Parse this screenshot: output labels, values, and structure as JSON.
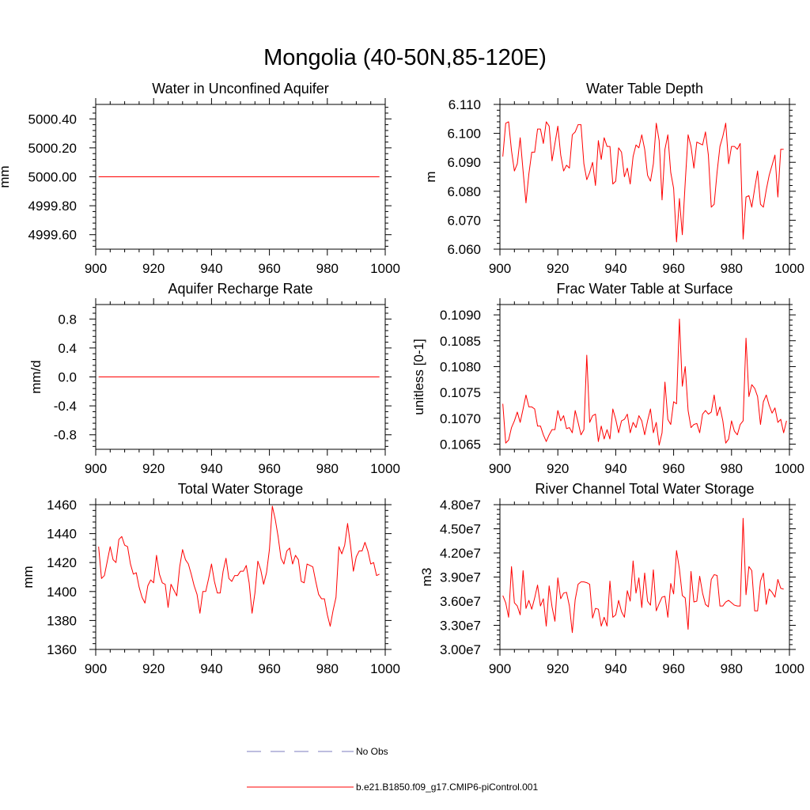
{
  "title": "Mongolia (40-50N,85-120E)",
  "colors": {
    "model": "#ff0000",
    "obs": "#7b7bbf",
    "axis": "#000000"
  },
  "legend": [
    {
      "label": "No Obs",
      "style": "dashed",
      "color": "#7b7bbf"
    },
    {
      "label": "b.e21.B1850.f09_g17.CMIP6-piControl.001",
      "style": "solid",
      "color": "#ff0000"
    }
  ],
  "chart_data": [
    {
      "type": "line",
      "title": "Water in Unconfined Aquifer",
      "xlabel": "",
      "ylabel": "mm",
      "xlim": [
        900,
        1000
      ],
      "ylim": [
        4999.5,
        5000.5
      ],
      "xticks": [
        900,
        920,
        940,
        960,
        980,
        1000
      ],
      "yticks": [
        4999.6,
        4999.8,
        5000.0,
        5000.2,
        5000.4
      ],
      "ytick_labels": [
        "4999.60",
        "4999.80",
        "5000.00",
        "5000.20",
        "5000.40"
      ],
      "series": [
        {
          "name": "b.e21.B1850.f09_g17.CMIP6-piControl.001",
          "x_start": 901,
          "values": [
            5000,
            5000,
            5000,
            5000,
            5000,
            5000,
            5000,
            5000,
            5000,
            5000,
            5000,
            5000,
            5000,
            5000,
            5000,
            5000,
            5000,
            5000,
            5000,
            5000,
            5000,
            5000,
            5000,
            5000,
            5000,
            5000,
            5000,
            5000,
            5000,
            5000,
            5000,
            5000,
            5000,
            5000,
            5000,
            5000,
            5000,
            5000,
            5000,
            5000,
            5000,
            5000,
            5000,
            5000,
            5000,
            5000,
            5000,
            5000,
            5000,
            5000,
            5000,
            5000,
            5000,
            5000,
            5000,
            5000,
            5000,
            5000,
            5000,
            5000,
            5000,
            5000,
            5000,
            5000,
            5000,
            5000,
            5000,
            5000,
            5000,
            5000,
            5000,
            5000,
            5000,
            5000,
            5000,
            5000,
            5000,
            5000,
            5000,
            5000,
            5000,
            5000,
            5000,
            5000,
            5000,
            5000,
            5000,
            5000,
            5000,
            5000,
            5000,
            5000,
            5000,
            5000,
            5000,
            5000,
            5000,
            5000
          ]
        }
      ]
    },
    {
      "type": "line",
      "title": "Water Table Depth",
      "xlabel": "",
      "ylabel": "m",
      "xlim": [
        900,
        1000
      ],
      "ylim": [
        6.06,
        6.11
      ],
      "xticks": [
        900,
        920,
        940,
        960,
        980,
        1000
      ],
      "yticks": [
        6.06,
        6.07,
        6.08,
        6.09,
        6.1,
        6.11
      ],
      "ytick_labels": [
        "6.060",
        "6.070",
        "6.080",
        "6.090",
        "6.100",
        "6.110"
      ],
      "series": [
        {
          "name": "b.e21.B1850.f09_g17.CMIP6-piControl.001",
          "x_start": 901,
          "values": [
            6.092,
            6.1035,
            6.104,
            6.094,
            6.087,
            6.0895,
            6.0985,
            6.087,
            6.076,
            6.086,
            6.0935,
            6.0935,
            6.1015,
            6.1015,
            6.0965,
            6.104,
            6.1025,
            6.0905,
            6.0965,
            6.1025,
            6.0925,
            6.087,
            6.089,
            6.088,
            6.0995,
            6.1005,
            6.103,
            6.103,
            6.0895,
            6.084,
            6.0865,
            6.09,
            6.082,
            6.0975,
            6.091,
            6.0985,
            6.0955,
            6.0955,
            6.0825,
            6.0835,
            6.095,
            6.0935,
            6.085,
            6.088,
            6.0825,
            6.092,
            6.096,
            6.095,
            6.0995,
            6.0945,
            6.0855,
            6.0835,
            6.0895,
            6.1035,
            6.0975,
            6.077,
            6.0945,
            6.0995,
            6.0865,
            6.081,
            6.0625,
            6.0775,
            6.065,
            6.083,
            6.0995,
            6.0955,
            6.088,
            6.097,
            6.0965,
            6.096,
            6.1005,
            6.0925,
            6.0745,
            6.0755,
            6.0865,
            6.0955,
            6.099,
            6.1035,
            6.0895,
            6.0955,
            6.0955,
            6.0945,
            6.0965,
            6.0635,
            6.078,
            6.0785,
            6.0745,
            6.081,
            6.087,
            6.0755,
            6.0745,
            6.0805,
            6.0855,
            6.089,
            6.0925,
            6.078,
            6.0945,
            6.0945
          ]
        }
      ]
    },
    {
      "type": "line",
      "title": "Aquifer Recharge Rate",
      "xlabel": "",
      "ylabel": "mm/d",
      "xlim": [
        900,
        1000
      ],
      "ylim": [
        -1.0,
        1.0
      ],
      "xticks": [
        900,
        920,
        940,
        960,
        980,
        1000
      ],
      "yticks": [
        -0.8,
        -0.4,
        0.0,
        0.4,
        0.8
      ],
      "ytick_labels": [
        "-0.8",
        "-0.4",
        "0.0",
        "0.4",
        "0.8"
      ],
      "series": [
        {
          "name": "b.e21.B1850.f09_g17.CMIP6-piControl.001",
          "x_start": 901,
          "values": [
            0,
            0,
            0,
            0,
            0,
            0,
            0,
            0,
            0,
            0,
            0,
            0,
            0,
            0,
            0,
            0,
            0,
            0,
            0,
            0,
            0,
            0,
            0,
            0,
            0,
            0,
            0,
            0,
            0,
            0,
            0,
            0,
            0,
            0,
            0,
            0,
            0,
            0,
            0,
            0,
            0,
            0,
            0,
            0,
            0,
            0,
            0,
            0,
            0,
            0,
            0,
            0,
            0,
            0,
            0,
            0,
            0,
            0,
            0,
            0,
            0,
            0,
            0,
            0,
            0,
            0,
            0,
            0,
            0,
            0,
            0,
            0,
            0,
            0,
            0,
            0,
            0,
            0,
            0,
            0,
            0,
            0,
            0,
            0,
            0,
            0,
            0,
            0,
            0,
            0,
            0,
            0,
            0,
            0,
            0,
            0,
            0,
            0
          ]
        }
      ]
    },
    {
      "type": "line",
      "title": "Frac Water Table at Surface",
      "xlabel": "",
      "ylabel": "unitless [0-1]",
      "xlim": [
        900,
        1000
      ],
      "ylim": [
        0.1064,
        0.1092
      ],
      "xticks": [
        900,
        920,
        940,
        960,
        980,
        1000
      ],
      "yticks": [
        0.1065,
        0.107,
        0.1075,
        0.108,
        0.1085,
        0.109
      ],
      "ytick_labels": [
        "0.1065",
        "0.1070",
        "0.1075",
        "0.1080",
        "0.1085",
        "0.1090"
      ],
      "series": [
        {
          "name": "b.e21.B1850.f09_g17.CMIP6-piControl.001",
          "x_start": 901,
          "values": [
            0.10728,
            0.10652,
            0.10658,
            0.10682,
            0.10695,
            0.10712,
            0.10692,
            0.10718,
            0.10745,
            0.10722,
            0.10722,
            0.10718,
            0.10685,
            0.10685,
            0.10668,
            0.10655,
            0.10668,
            0.10678,
            0.10678,
            0.10715,
            0.10695,
            0.10705,
            0.1068,
            0.10682,
            0.10672,
            0.10715,
            0.10692,
            0.10668,
            0.10678,
            0.10822,
            0.10692,
            0.10705,
            0.10708,
            0.10655,
            0.10685,
            0.1066,
            0.10678,
            0.1066,
            0.10718,
            0.10698,
            0.10672,
            0.10695,
            0.10698,
            0.10708,
            0.10672,
            0.10692,
            0.10682,
            0.10705,
            0.10695,
            0.10668,
            0.10695,
            0.10718,
            0.10672,
            0.10692,
            0.10648,
            0.10672,
            0.1077,
            0.10698,
            0.10688,
            0.10732,
            0.10728,
            0.10892,
            0.10762,
            0.108,
            0.10715,
            0.10682,
            0.10688,
            0.1069,
            0.10672,
            0.10708,
            0.10715,
            0.10708,
            0.10712,
            0.10745,
            0.10705,
            0.10722,
            0.10695,
            0.10652,
            0.1066,
            0.10695,
            0.10675,
            0.10668,
            0.10688,
            0.10695,
            0.10855,
            0.10742,
            0.10765,
            0.10758,
            0.10742,
            0.10688,
            0.10732,
            0.10745,
            0.10725,
            0.1071,
            0.1072,
            0.10692,
            0.10698,
            0.10672,
            0.10695
          ]
        }
      ]
    },
    {
      "type": "line",
      "title": "Total Water Storage",
      "xlabel": "",
      "ylabel": "mm",
      "xlim": [
        900,
        1000
      ],
      "ylim": [
        1360,
        1460
      ],
      "xticks": [
        900,
        920,
        940,
        960,
        980,
        1000
      ],
      "yticks": [
        1360,
        1380,
        1400,
        1420,
        1440,
        1460
      ],
      "ytick_labels": [
        "1360",
        "1380",
        "1400",
        "1420",
        "1440",
        "1460"
      ],
      "series": [
        {
          "name": "b.e21.B1850.f09_g17.CMIP6-piControl.001",
          "x_start": 901,
          "values": [
            1431,
            1409,
            1411,
            1421,
            1431,
            1422,
            1420,
            1436,
            1438,
            1432,
            1431,
            1419,
            1412,
            1413,
            1403,
            1396,
            1392,
            1404,
            1408,
            1406,
            1425,
            1412,
            1406,
            1405,
            1389,
            1405,
            1401,
            1397,
            1417,
            1429,
            1422,
            1419,
            1412,
            1404,
            1398,
            1385,
            1400,
            1400,
            1409,
            1419,
            1407,
            1399,
            1399,
            1414,
            1423,
            1409,
            1407,
            1411,
            1411,
            1414,
            1414,
            1418,
            1406,
            1385,
            1399,
            1421,
            1415,
            1405,
            1413,
            1429,
            1459,
            1450,
            1438,
            1423,
            1419,
            1428,
            1430,
            1419,
            1425,
            1422,
            1407,
            1406,
            1419,
            1418,
            1417,
            1407,
            1398,
            1395,
            1395,
            1384,
            1376,
            1387,
            1396,
            1431,
            1426,
            1432,
            1447,
            1432,
            1414,
            1424,
            1428,
            1428,
            1434,
            1428,
            1419,
            1420,
            1411,
            1412
          ]
        }
      ]
    },
    {
      "type": "line",
      "title": "River Channel Total Water Storage",
      "xlabel": "",
      "ylabel": "m3",
      "xlim": [
        900,
        1000
      ],
      "ylim": [
        30000000,
        48000000
      ],
      "xticks": [
        900,
        920,
        940,
        960,
        980,
        1000
      ],
      "yticks": [
        30000000,
        33000000,
        36000000,
        39000000,
        42000000,
        45000000,
        48000000
      ],
      "ytick_labels": [
        "3.00e7",
        "3.30e7",
        "3.60e7",
        "3.90e7",
        "4.20e7",
        "4.50e7",
        "4.80e7"
      ],
      "series": [
        {
          "name": "b.e21.B1850.f09_g17.CMIP6-piControl.001",
          "x_start": 901,
          "values": [
            36700000,
            35800000,
            34000000,
            40300000,
            35800000,
            35400000,
            34300000,
            39800000,
            35100000,
            36100000,
            35000000,
            36400000,
            38000000,
            35400000,
            36300000,
            32900000,
            37900000,
            35300000,
            33500000,
            38900000,
            36300000,
            37000000,
            37100000,
            35400000,
            32100000,
            36200000,
            38100000,
            38400000,
            38400000,
            38300000,
            38100000,
            33900000,
            35100000,
            35000000,
            32900000,
            34000000,
            32900000,
            38500000,
            34000000,
            34300000,
            36100000,
            34700000,
            34000000,
            37300000,
            36000000,
            41000000,
            37000000,
            38900000,
            35200000,
            39500000,
            36000000,
            35500000,
            39900000,
            34800000,
            35700000,
            36500000,
            36600000,
            34000000,
            38200000,
            36900000,
            42300000,
            40000000,
            36700000,
            36400000,
            32500000,
            39700000,
            35900000,
            36000000,
            39100000,
            37000000,
            35600000,
            35300000,
            38700000,
            39300000,
            39200000,
            35400000,
            35400000,
            35900000,
            36100000,
            35800000,
            35500000,
            35400000,
            35400000,
            46300000,
            36800000,
            40300000,
            39800000,
            34800000,
            34800000,
            38500000,
            39500000,
            35600000,
            37500000,
            37100000,
            36500000,
            38700000,
            37600000,
            37500000
          ]
        }
      ]
    }
  ]
}
